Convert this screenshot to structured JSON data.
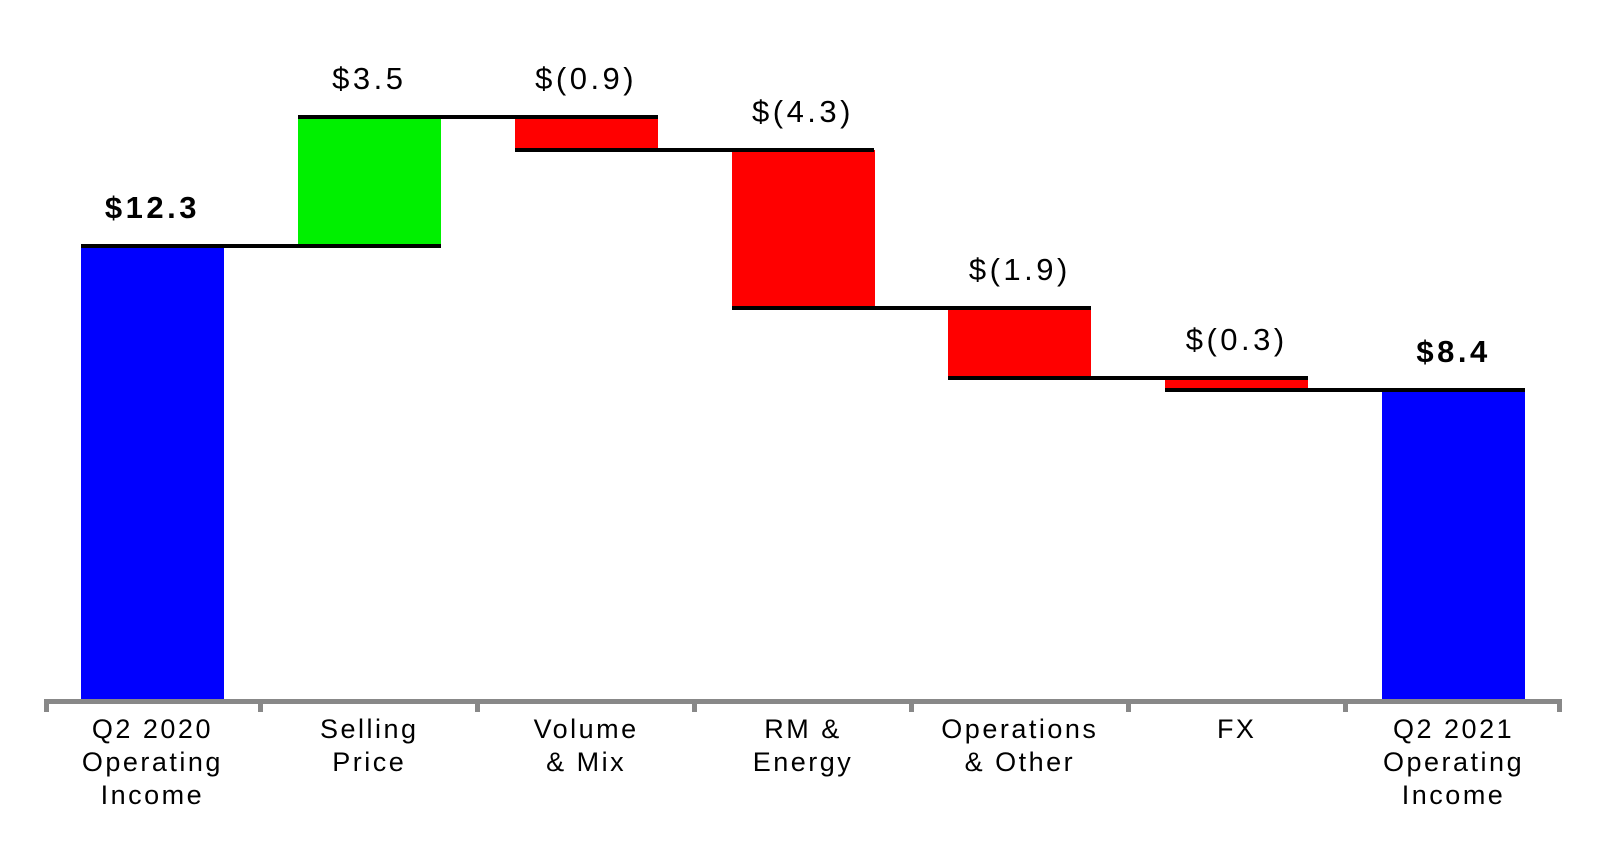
{
  "chart_data": {
    "type": "bar",
    "subtype": "waterfall",
    "title": "",
    "xlabel": "",
    "ylabel": "",
    "y_axis_visible": false,
    "grid": false,
    "legend": false,
    "ylim": [
      0,
      16.5
    ],
    "categories": [
      "Q2 2020 Operating Income",
      "Selling Price",
      "Volume & Mix",
      "RM & Energy",
      "Operations & Other",
      "FX",
      "Q2 2021 Operating Income"
    ],
    "steps": [
      {
        "label_lines": [
          "Q2 2020",
          "Operating",
          "Income"
        ],
        "kind": "total",
        "value": 12.3,
        "value_label": "$12.3"
      },
      {
        "label_lines": [
          "Selling",
          "Price"
        ],
        "kind": "increase",
        "value": 3.5,
        "value_label": "$3.5"
      },
      {
        "label_lines": [
          "Volume",
          "& Mix"
        ],
        "kind": "decrease",
        "value": -0.9,
        "value_label": "$(0.9)"
      },
      {
        "label_lines": [
          "RM &",
          "Energy"
        ],
        "kind": "decrease",
        "value": -4.3,
        "value_label": "$(4.3)"
      },
      {
        "label_lines": [
          "Operations",
          "& Other"
        ],
        "kind": "decrease",
        "value": -1.9,
        "value_label": "$(1.9)"
      },
      {
        "label_lines": [
          "FX"
        ],
        "kind": "decrease",
        "value": -0.3,
        "value_label": "$(0.3)"
      },
      {
        "label_lines": [
          "Q2 2021",
          "Operating",
          "Income"
        ],
        "kind": "total",
        "value": 8.4,
        "value_label": "$8.4"
      }
    ],
    "cumulative_levels": [
      12.3,
      15.8,
      14.9,
      10.6,
      8.7,
      8.4,
      8.4
    ],
    "colors": {
      "total": "#0000FF",
      "increase": "#00F000",
      "decrease": "#FF0000",
      "connector": "#000000",
      "axis": "#888888",
      "text": "#000000"
    }
  }
}
